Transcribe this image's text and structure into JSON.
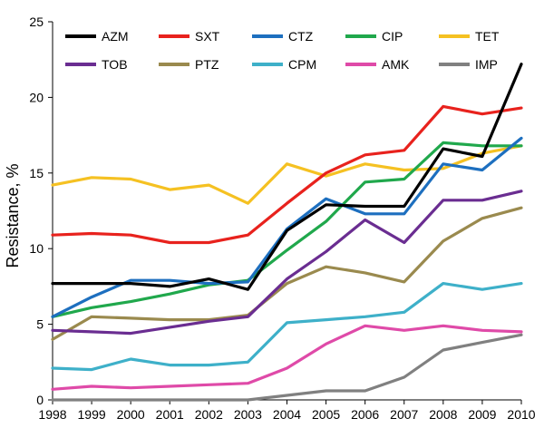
{
  "chart_data": {
    "type": "line",
    "title": "",
    "xlabel": "",
    "ylabel": "Resistance, %",
    "xlim": [
      1998,
      2010
    ],
    "ylim": [
      0,
      25
    ],
    "yticks": [
      0,
      5,
      10,
      15,
      20,
      25
    ],
    "categories": [
      "1998",
      "1999",
      "2000",
      "2001",
      "2002",
      "2003",
      "2004",
      "2005",
      "2006",
      "2007",
      "2008",
      "2009",
      "2010"
    ],
    "grid": false,
    "legend": "top",
    "series": [
      {
        "name": "AZM",
        "color": "#000000",
        "values": [
          7.7,
          7.7,
          7.7,
          7.5,
          8.0,
          7.3,
          11.2,
          12.9,
          12.8,
          12.8,
          16.6,
          16.1,
          22.2
        ]
      },
      {
        "name": "SXT",
        "color": "#e8221d",
        "values": [
          10.9,
          11.0,
          10.9,
          10.4,
          10.4,
          10.9,
          13.0,
          15.0,
          16.2,
          16.5,
          19.4,
          18.9,
          19.3
        ]
      },
      {
        "name": "CTZ",
        "color": "#1d6fbf",
        "values": [
          5.5,
          6.8,
          7.9,
          7.9,
          7.7,
          7.8,
          11.3,
          13.3,
          12.3,
          12.3,
          15.6,
          15.2,
          17.3
        ]
      },
      {
        "name": "CIP",
        "color": "#20a84c",
        "values": [
          5.5,
          6.1,
          6.5,
          7.0,
          7.6,
          7.9,
          9.9,
          11.8,
          14.4,
          14.6,
          17.0,
          16.8,
          16.8
        ]
      },
      {
        "name": "TET",
        "color": "#f5c122",
        "values": [
          14.2,
          14.7,
          14.6,
          13.9,
          14.2,
          13.0,
          15.6,
          14.8,
          15.6,
          15.2,
          15.3,
          16.3,
          16.8
        ]
      },
      {
        "name": "TOB",
        "color": "#6a2d91",
        "values": [
          4.6,
          4.5,
          4.4,
          4.8,
          5.2,
          5.5,
          8.0,
          9.8,
          11.9,
          10.4,
          13.2,
          13.2,
          13.8
        ]
      },
      {
        "name": "PTZ",
        "color": "#9a8a4e",
        "values": [
          4.0,
          5.5,
          5.4,
          5.3,
          5.3,
          5.6,
          7.7,
          8.8,
          8.4,
          7.8,
          10.5,
          12.0,
          12.7
        ]
      },
      {
        "name": "CPM",
        "color": "#3eb0c9",
        "values": [
          2.1,
          2.0,
          2.7,
          2.3,
          2.3,
          2.5,
          5.1,
          5.3,
          5.5,
          5.8,
          7.7,
          7.3,
          7.7
        ]
      },
      {
        "name": "AMK",
        "color": "#df4aa8",
        "values": [
          0.7,
          0.9,
          0.8,
          0.9,
          1.0,
          1.1,
          2.1,
          3.7,
          4.9,
          4.6,
          4.9,
          4.6,
          4.5
        ]
      },
      {
        "name": "IMP",
        "color": "#808080",
        "values": [
          0.0,
          0.0,
          0.0,
          0.0,
          0.0,
          0.0,
          0.3,
          0.6,
          0.6,
          1.5,
          3.3,
          3.8,
          4.3
        ]
      }
    ]
  }
}
